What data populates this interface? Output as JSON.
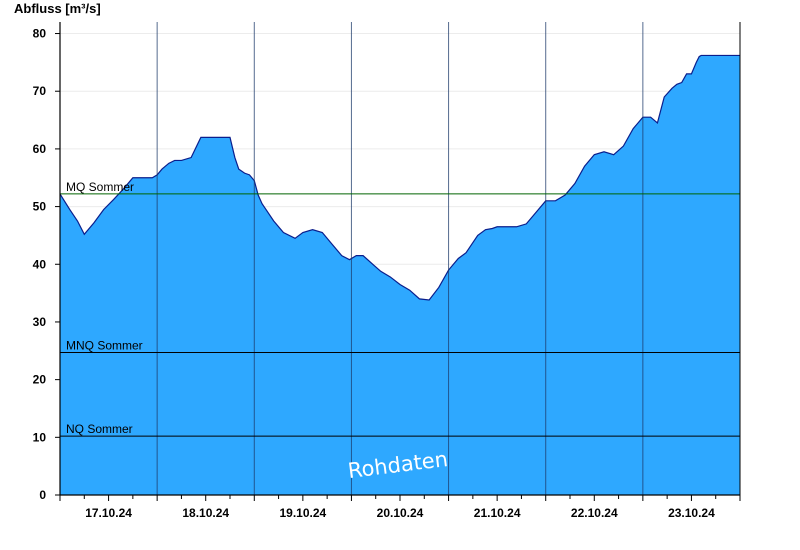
{
  "chart_data": {
    "type": "area",
    "ylabel": "Abfluss [m³/s]",
    "ylim": [
      0,
      82
    ],
    "x_range_days": [
      16.5,
      23.5
    ],
    "yticks": [
      0,
      10,
      20,
      30,
      40,
      50,
      60,
      70,
      80
    ],
    "xticks": [
      {
        "day": 17,
        "label": "17.10.24"
      },
      {
        "day": 18,
        "label": "18.10.24"
      },
      {
        "day": 19,
        "label": "19.10.24"
      },
      {
        "day": 20,
        "label": "20.10.24"
      },
      {
        "day": 21,
        "label": "21.10.24"
      },
      {
        "day": 22,
        "label": "22.10.24"
      },
      {
        "day": 23,
        "label": "23.10.24"
      }
    ],
    "grid": "vertical at midnight, horizontal light",
    "colors": {
      "fill": "#2EA8FF",
      "stroke": "#0A1E8C",
      "mq": "#006400",
      "ref": "#000000"
    },
    "reference_lines": [
      {
        "name": "MQ Sommer",
        "value": 52.2
      },
      {
        "name": "MNQ Sommer",
        "value": 24.7
      },
      {
        "name": "NQ Sommer",
        "value": 10.2
      }
    ],
    "watermark": "Rohdaten",
    "series": [
      {
        "x": [
          16.5,
          16.6,
          16.68,
          16.75,
          16.85,
          16.95,
          17.05,
          17.15,
          17.25,
          17.35,
          17.45,
          17.5,
          17.55,
          17.62,
          17.68,
          17.75,
          17.85,
          17.95,
          18.05,
          18.15,
          18.25,
          18.3,
          18.34,
          18.4,
          18.45,
          18.5,
          18.54,
          18.58,
          18.62,
          18.7,
          18.8,
          18.92,
          19.0,
          19.1,
          19.2,
          19.3,
          19.4,
          19.48,
          19.55,
          19.62,
          19.72,
          19.8,
          19.9,
          20.0,
          20.1,
          20.2,
          20.3,
          20.4,
          20.5,
          20.6,
          20.68,
          20.72,
          20.8,
          20.88,
          20.95,
          21.0,
          21.1,
          21.2,
          21.3,
          21.4,
          21.5,
          21.6,
          21.7,
          21.8,
          21.9,
          22.0,
          22.1,
          22.2,
          22.3,
          22.4,
          22.5,
          22.58,
          22.65,
          22.72,
          22.8,
          22.85,
          22.9,
          22.95,
          23.0,
          23.05,
          23.08,
          23.1,
          23.12,
          23.15,
          23.18,
          23.2,
          23.25,
          23.3,
          23.35,
          23.4,
          23.45,
          23.5
        ],
        "y": [
          52.2,
          49.5,
          47.5,
          45.2,
          47.2,
          49.5,
          51.2,
          53.0,
          55.0,
          55.0,
          55.0,
          55.5,
          56.5,
          57.5,
          58.0,
          58.0,
          58.5,
          62.0,
          62.0,
          62.0,
          62.0,
          58.5,
          56.5,
          55.8,
          55.5,
          54.5,
          52.0,
          50.5,
          49.5,
          47.5,
          45.5,
          44.5,
          45.5,
          46.0,
          45.5,
          43.5,
          41.5,
          40.8,
          41.5,
          41.5,
          40.0,
          38.8,
          37.8,
          36.5,
          35.5,
          34.0,
          33.8,
          36.0,
          39.0,
          41.0,
          42.0,
          43.0,
          45.0,
          46.0,
          46.2,
          46.5,
          46.5,
          46.5,
          47.0,
          49.0,
          51.0,
          51.0,
          52.0,
          54.0,
          57.0,
          59.0,
          59.5,
          59.0,
          60.5,
          63.5,
          65.5,
          65.5,
          64.5,
          69.0,
          70.5,
          71.2,
          71.5,
          73.0,
          73.0,
          75.0,
          76.0,
          76.2,
          76.2,
          76.2,
          76.2,
          76.2,
          76.2,
          76.2,
          76.2,
          76.2,
          76.2,
          76.2
        ]
      }
    ]
  }
}
